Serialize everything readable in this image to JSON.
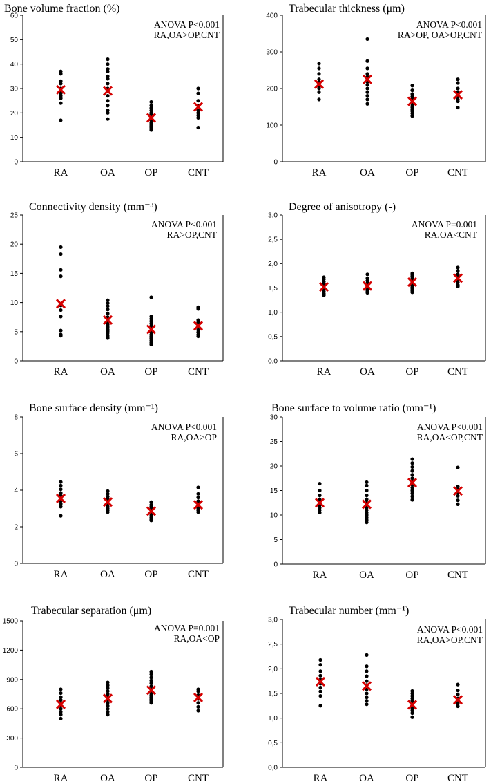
{
  "chart_data": [
    {
      "type": "scatter",
      "title": "Bone volume fraction (%)",
      "annotation": [
        "ANOVA P<0.001",
        "RA,OA>OP,CNT"
      ],
      "categories": [
        "RA",
        "OA",
        "OP",
        "CNT"
      ],
      "ylim": [
        0,
        60
      ],
      "yticks": [
        0,
        10,
        20,
        30,
        40,
        50,
        60
      ],
      "ytick_labels": [
        "0",
        "10",
        "20",
        "30",
        "40",
        "50",
        "60"
      ],
      "points": [
        [
          37,
          36,
          33,
          32,
          30,
          29,
          28,
          27,
          26,
          24,
          17
        ],
        [
          42,
          40,
          38,
          37,
          35,
          34,
          32,
          30,
          29,
          27,
          25,
          23,
          21,
          20,
          17.5
        ],
        [
          24.5,
          23,
          22,
          21,
          20,
          19.5,
          19,
          18,
          17.5,
          17,
          16,
          15.5,
          15,
          14.5,
          14,
          13.5,
          13
        ],
        [
          30,
          28,
          25,
          23,
          21,
          20,
          19,
          18,
          14
        ]
      ],
      "means": [
        29.5,
        29,
        18,
        22.5
      ]
    },
    {
      "type": "scatter",
      "title": "Trabecular thickness (μm)",
      "annotation": [
        "ANOVA P<0.001",
        "RA>OP, OA>OP,CNT"
      ],
      "categories": [
        "RA",
        "OA",
        "OP",
        "CNT"
      ],
      "ylim": [
        0,
        400
      ],
      "yticks": [
        0,
        100,
        200,
        300,
        400
      ],
      "ytick_labels": [
        "0",
        "100",
        "200",
        "300",
        "400"
      ],
      "points": [
        [
          268,
          255,
          240,
          225,
          218,
          210,
          205,
          200,
          190,
          170
        ],
        [
          335,
          275,
          255,
          240,
          232,
          225,
          218,
          210,
          200,
          190,
          180,
          170,
          158
        ],
        [
          208,
          195,
          185,
          178,
          172,
          168,
          162,
          158,
          152,
          148,
          142,
          138,
          132,
          125
        ],
        [
          225,
          215,
          200,
          190,
          185,
          178,
          170,
          165,
          148
        ]
      ],
      "means": [
        212,
        225,
        165,
        183
      ]
    },
    {
      "type": "scatter",
      "title": "Connectivity density (mm⁻³)",
      "annotation": [
        "ANOVA P<0.001",
        "RA>OP,CNT"
      ],
      "categories": [
        "RA",
        "OA",
        "OP",
        "CNT"
      ],
      "ylim": [
        0,
        25
      ],
      "yticks": [
        0,
        5,
        10,
        15,
        20,
        25
      ],
      "ytick_labels": [
        "0",
        "5",
        "10",
        "15",
        "20",
        "25"
      ],
      "points": [
        [
          19.5,
          18.3,
          15.6,
          14.5,
          9.5,
          8.7,
          7.6,
          5.2,
          4.5,
          4.3
        ],
        [
          10.4,
          9.9,
          9.4,
          8.8,
          8.1,
          7.5,
          7.0,
          6.6,
          6.2,
          5.8,
          5.4,
          5.1,
          4.8,
          4.4,
          4.1,
          3.9
        ],
        [
          10.9,
          7.6,
          7.2,
          6.8,
          6.4,
          6.0,
          5.6,
          5.2,
          4.9,
          4.5,
          4.2,
          3.9,
          3.5,
          3.1,
          2.8
        ],
        [
          9.2,
          8.9,
          7.0,
          6.6,
          6.2,
          5.8,
          5.3,
          4.9,
          4.5,
          4.2
        ]
      ],
      "means": [
        9.8,
        7.0,
        5.4,
        6.0
      ]
    },
    {
      "type": "scatter",
      "title": "Degree of anisotropy (-)",
      "annotation": [
        "ANOVA P=0.001",
        "RA,OA<CNT"
      ],
      "categories": [
        "RA",
        "OA",
        "OP",
        "CNT"
      ],
      "ylim": [
        0,
        3
      ],
      "yticks": [
        0,
        0.5,
        1,
        1.5,
        2,
        2.5,
        3
      ],
      "ytick_labels": [
        "0,0",
        "0,5",
        "1,0",
        "1,5",
        "2,0",
        "2,5",
        "3,0"
      ],
      "points": [
        [
          1.72,
          1.68,
          1.63,
          1.58,
          1.55,
          1.5,
          1.46,
          1.42,
          1.38,
          1.35
        ],
        [
          1.78,
          1.7,
          1.65,
          1.6,
          1.57,
          1.54,
          1.51,
          1.48,
          1.45,
          1.42,
          1.4
        ],
        [
          1.8,
          1.77,
          1.74,
          1.7,
          1.66,
          1.63,
          1.6,
          1.56,
          1.52,
          1.48,
          1.44,
          1.41
        ],
        [
          1.92,
          1.85,
          1.78,
          1.72,
          1.66,
          1.61,
          1.56,
          1.53
        ]
      ],
      "means": [
        1.52,
        1.54,
        1.62,
        1.7
      ]
    },
    {
      "type": "scatter",
      "title": "Bone surface density (mm⁻¹)",
      "annotation": [
        "ANOVA P<0.001",
        "RA,OA>OP"
      ],
      "categories": [
        "RA",
        "OA",
        "OP",
        "CNT"
      ],
      "ylim": [
        0,
        8
      ],
      "yticks": [
        0,
        2,
        4,
        6,
        8
      ],
      "ytick_labels": [
        "0",
        "2",
        "4",
        "6",
        "8"
      ],
      "points": [
        [
          4.45,
          4.25,
          4.05,
          3.85,
          3.7,
          3.55,
          3.4,
          3.25,
          3.1,
          2.6
        ],
        [
          3.95,
          3.8,
          3.65,
          3.5,
          3.4,
          3.3,
          3.2,
          3.1,
          3.0,
          2.9,
          2.8
        ],
        [
          3.35,
          3.2,
          3.1,
          3.0,
          2.9,
          2.8,
          2.7,
          2.6,
          2.5,
          2.4,
          2.35
        ],
        [
          4.15,
          3.8,
          3.6,
          3.4,
          3.25,
          3.1,
          3.0,
          2.9,
          2.8
        ]
      ],
      "means": [
        3.55,
        3.35,
        2.85,
        3.2
      ]
    },
    {
      "type": "scatter",
      "title": "Bone surface to volume ratio (mm⁻¹)",
      "annotation": [
        "ANOVA P<0.001",
        "RA,OA<OP,CNT"
      ],
      "categories": [
        "RA",
        "OA",
        "OP",
        "CNT"
      ],
      "ylim": [
        0,
        30
      ],
      "yticks": [
        0,
        5,
        10,
        15,
        20,
        25,
        30
      ],
      "ytick_labels": [
        "0",
        "5",
        "10",
        "15",
        "20",
        "25",
        "30"
      ],
      "points": [
        [
          16.4,
          15.0,
          14.0,
          13.2,
          12.5,
          12.0,
          11.5,
          11.0,
          10.5
        ],
        [
          16.7,
          16.0,
          15.0,
          14.0,
          13.2,
          12.5,
          12.0,
          11.5,
          11.0,
          10.5,
          10.0,
          9.5,
          9.0,
          8.5
        ],
        [
          21.4,
          20.6,
          19.8,
          19.0,
          18.2,
          17.5,
          16.8,
          16.2,
          15.6,
          15.0,
          14.4,
          13.8,
          13.1
        ],
        [
          19.7,
          15.8,
          15.2,
          14.6,
          13.9,
          13.0,
          12.2
        ]
      ],
      "means": [
        12.5,
        12.2,
        16.6,
        14.9
      ]
    },
    {
      "type": "scatter",
      "title": "Trabecular separation (μm)",
      "annotation": [
        "ANOVA P=0.001",
        "RA,OA<OP"
      ],
      "categories": [
        "RA",
        "OA",
        "OP",
        "CNT"
      ],
      "ylim": [
        0,
        1500
      ],
      "yticks": [
        0,
        300,
        600,
        900,
        1200,
        1500
      ],
      "ytick_labels": [
        "0",
        "300",
        "600",
        "900",
        "1200",
        "1500"
      ],
      "points": [
        [
          800,
          760,
          720,
          690,
          660,
          630,
          600,
          570,
          540,
          500
        ],
        [
          870,
          840,
          810,
          780,
          750,
          720,
          690,
          660,
          630,
          600,
          570,
          540
        ],
        [
          980,
          950,
          920,
          890,
          860,
          830,
          800,
          780,
          760,
          740,
          720,
          700,
          680,
          660
        ],
        [
          800,
          780,
          740,
          700,
          660,
          620,
          580
        ]
      ],
      "means": [
        645,
        705,
        790,
        715
      ]
    },
    {
      "type": "scatter",
      "title": "Trabecular number (mm⁻¹)",
      "annotation": [
        "ANOVA P<0.001",
        "RA,OA>OP,CNT"
      ],
      "categories": [
        "RA",
        "OA",
        "OP",
        "CNT"
      ],
      "ylim": [
        0,
        3
      ],
      "yticks": [
        0,
        0.5,
        1,
        1.5,
        2,
        2.5,
        3
      ],
      "ytick_labels": [
        "0,0",
        "0,5",
        "1,0",
        "1,5",
        "2,0",
        "2,5",
        "3,0"
      ],
      "points": [
        [
          2.18,
          2.08,
          1.95,
          1.86,
          1.78,
          1.7,
          1.62,
          1.54,
          1.45,
          1.25
        ],
        [
          2.28,
          2.05,
          1.95,
          1.85,
          1.75,
          1.67,
          1.58,
          1.5,
          1.42,
          1.35,
          1.28
        ],
        [
          1.55,
          1.5,
          1.45,
          1.4,
          1.35,
          1.31,
          1.27,
          1.23,
          1.19,
          1.15,
          1.1,
          1.02
        ],
        [
          1.68,
          1.56,
          1.48,
          1.4,
          1.34,
          1.29,
          1.24
        ]
      ],
      "means": [
        1.74,
        1.65,
        1.27,
        1.37
      ]
    }
  ]
}
